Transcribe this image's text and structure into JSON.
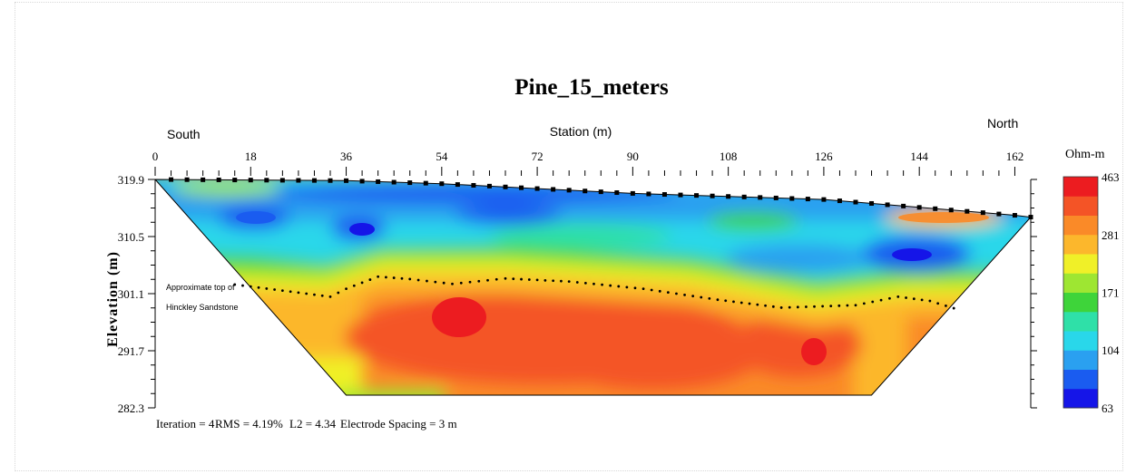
{
  "chart_data": {
    "type": "heatmap",
    "title": "Pine_15_meters",
    "xlabel": "Station (m)",
    "ylabel": "Elevation (m)",
    "x_ticks": [
      0,
      18,
      36,
      54,
      72,
      90,
      108,
      126,
      144,
      162
    ],
    "xlim": [
      0,
      165
    ],
    "y_ticks": [
      319.9,
      310.5,
      301.1,
      291.7,
      282.3
    ],
    "ylim": [
      282.3,
      319.9
    ],
    "left_end_label": "South",
    "right_end_label": "North",
    "colorbar": {
      "label": "Ohm-m",
      "ticks": [
        463,
        281,
        171,
        104,
        63
      ],
      "range": [
        63,
        463
      ],
      "colors": [
        "#1515e8",
        "#1a5cf0",
        "#2aa0f0",
        "#29d7ea",
        "#2fe0a8",
        "#3ed43a",
        "#9ee632",
        "#f0f028",
        "#fcb72c",
        "#fa8a28",
        "#f45426",
        "#ec1c20"
      ]
    },
    "surface_elevation": [
      [
        0,
        319.9
      ],
      [
        36,
        319.7
      ],
      [
        54,
        319.2
      ],
      [
        72,
        318.4
      ],
      [
        90,
        317.6
      ],
      [
        108,
        317.1
      ],
      [
        126,
        316.6
      ],
      [
        144,
        315.3
      ],
      [
        162,
        314.0
      ],
      [
        165,
        313.7
      ]
    ],
    "contact_line": {
      "label": [
        "Approximate top of",
        "Hinckley Sandstone"
      ],
      "points": [
        [
          15,
          302.6
        ],
        [
          24,
          301.6
        ],
        [
          33,
          300.6
        ],
        [
          36,
          301.9
        ],
        [
          42,
          303.9
        ],
        [
          48,
          303.5
        ],
        [
          56,
          302.7
        ],
        [
          66,
          303.6
        ],
        [
          78,
          303.1
        ],
        [
          92,
          301.9
        ],
        [
          106,
          300.1
        ],
        [
          118,
          298.8
        ],
        [
          132,
          299.2
        ],
        [
          140,
          300.6
        ],
        [
          146,
          299.9
        ],
        [
          152,
          298.3
        ]
      ]
    },
    "features": [
      {
        "x": 58,
        "y": 297.2,
        "value": 463
      },
      {
        "x": 87,
        "y": 292.0,
        "value": 430
      },
      {
        "x": 125,
        "y": 291.9,
        "value": 463
      },
      {
        "x": 20,
        "y": 313.8,
        "value": 75
      },
      {
        "x": 39,
        "y": 312.4,
        "value": 70
      },
      {
        "x": 58,
        "y": 314.1,
        "value": 88
      },
      {
        "x": 80,
        "y": 313.6,
        "value": 96
      },
      {
        "x": 110,
        "y": 309.5,
        "value": 90
      },
      {
        "x": 143,
        "y": 308.2,
        "value": 65
      },
      {
        "x": 150,
        "y": 313.1,
        "value": 300
      }
    ],
    "footer": {
      "iteration": "Iteration = 4",
      "rms": "RMS = 4.19%",
      "l2": "L2 = 4.34",
      "spacing": "Electrode Spacing = 3 m"
    }
  }
}
